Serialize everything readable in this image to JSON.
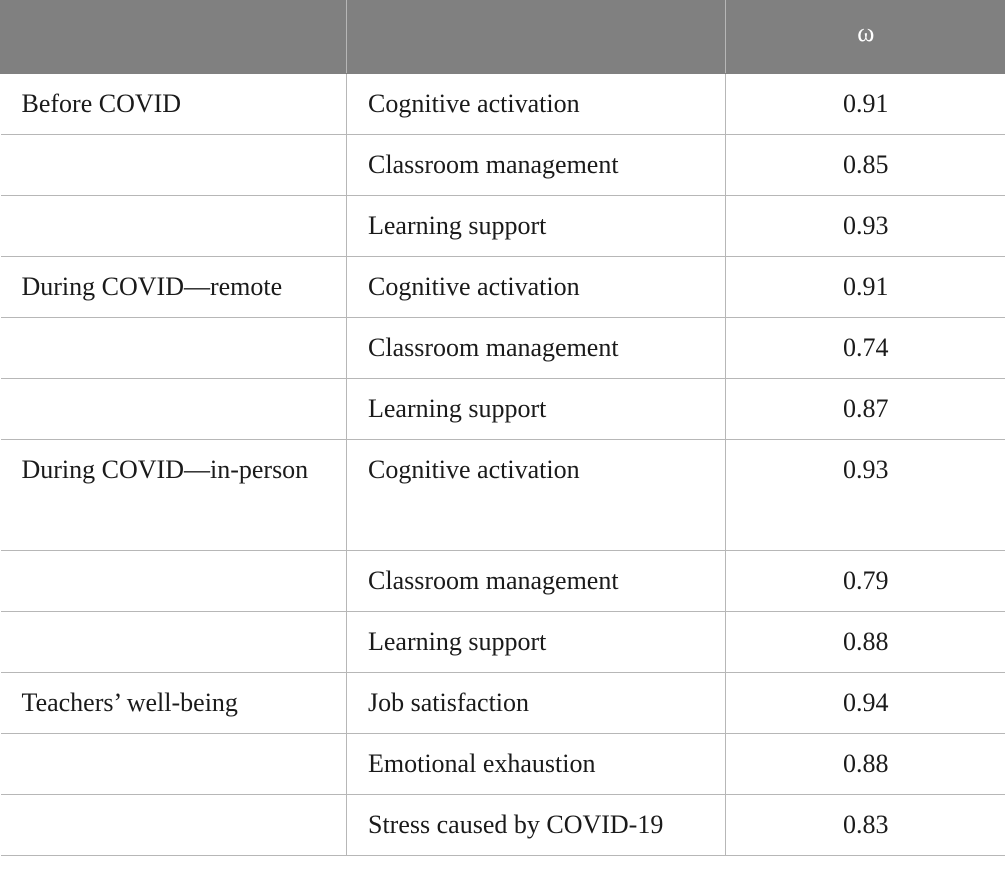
{
  "header": {
    "col1": "",
    "col2": "",
    "col3": "ω"
  },
  "rows": [
    {
      "group": "Before COVID",
      "scale": "Cognitive activation",
      "omega": "0.91"
    },
    {
      "group": "",
      "scale": "Classroom management",
      "omega": "0.85"
    },
    {
      "group": "",
      "scale": "Learning support",
      "omega": "0.93"
    },
    {
      "group": "During COVID—remote",
      "scale": "Cognitive activation",
      "omega": "0.91"
    },
    {
      "group": "",
      "scale": "Classroom management",
      "omega": "0.74"
    },
    {
      "group": "",
      "scale": "Learning support",
      "omega": "0.87"
    },
    {
      "group": "During COVID—in-person",
      "scale": "Cognitive activation",
      "omega": "0.93"
    },
    {
      "group": "",
      "scale": "Classroom management",
      "omega": "0.79"
    },
    {
      "group": "",
      "scale": "Learning support",
      "omega": "0.88"
    },
    {
      "group": "Teachers’ well-being",
      "scale": "Job satisfaction",
      "omega": "0.94"
    },
    {
      "group": "",
      "scale": "Emotional exhaustion",
      "omega": "0.88"
    },
    {
      "group": "",
      "scale": "Stress caused by COVID-19",
      "omega": "0.83"
    }
  ]
}
